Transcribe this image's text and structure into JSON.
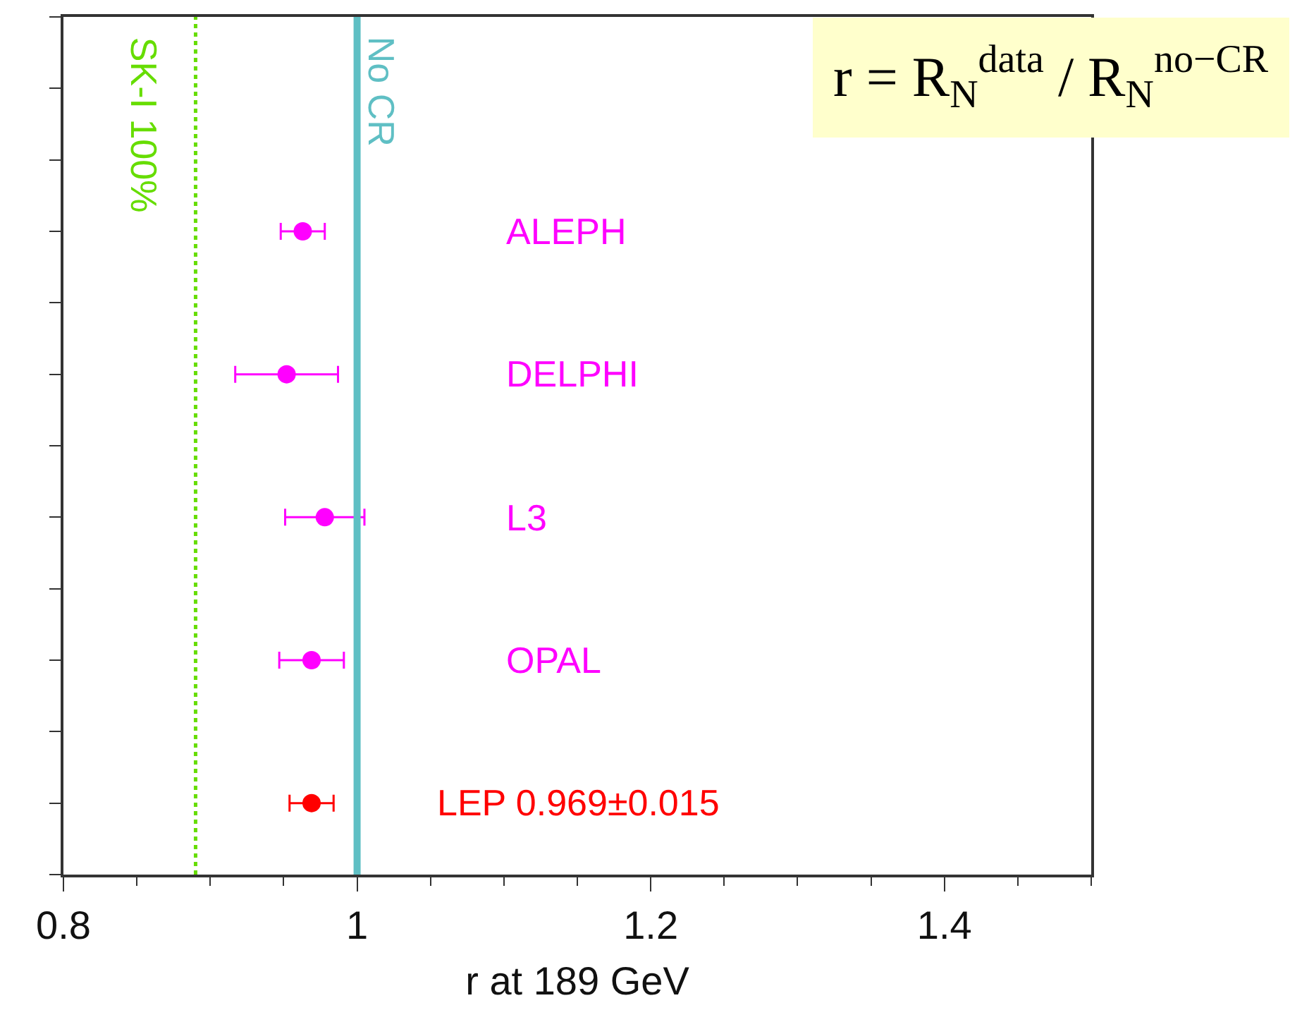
{
  "chart_data": {
    "type": "scatter",
    "orientation": "horizontal",
    "categories": [
      "ALEPH",
      "DELPHI",
      "L3",
      "OPAL",
      "LEP 0.969±0.015"
    ],
    "values": [
      0.963,
      0.952,
      0.978,
      0.969,
      0.969
    ],
    "errors": [
      0.015,
      0.035,
      0.027,
      0.022,
      0.015
    ],
    "colors": [
      "#ff00ff",
      "#ff00ff",
      "#ff00ff",
      "#ff00ff",
      "#ff0000"
    ],
    "marker": "circle",
    "xlim": [
      0.8,
      1.5
    ],
    "xticks": [
      0.8,
      1,
      1.2,
      1.4
    ],
    "xlabel": "r at 189 GeV",
    "ref_lines": [
      {
        "axis": "x",
        "value": 0.89,
        "label": "SK-I 100%",
        "color": "#66dd00",
        "line_style": "dotted"
      },
      {
        "axis": "x",
        "value": 1,
        "label": "No CR",
        "color": "#5fbfc4",
        "line_style": "solid"
      }
    ],
    "annotations": [
      "r = R$_{N}$$^{data}$ / R$_{N}$$^{no−CR}$"
    ],
    "legend": false
  }
}
